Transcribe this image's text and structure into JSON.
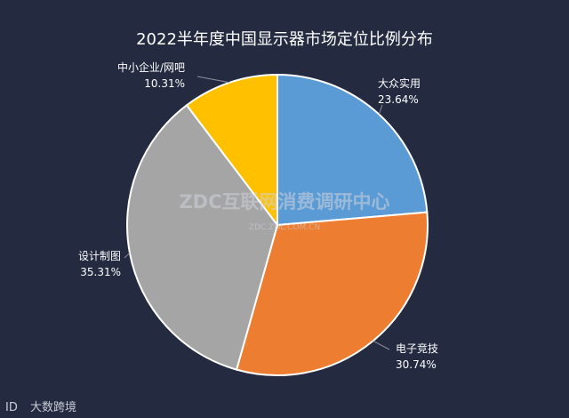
{
  "chart_data": {
    "type": "pie",
    "title": "2022半年度中国显示器市场定位比例分布",
    "slices": [
      {
        "label": "大众实用",
        "value": 23.64,
        "display": "23.64%",
        "color": "#5b9bd5"
      },
      {
        "label": "电子竞技",
        "value": 30.74,
        "display": "30.74%",
        "color": "#ed7d31"
      },
      {
        "label": "设计制图",
        "value": 35.31,
        "display": "35.31%",
        "color": "#a5a5a5"
      },
      {
        "label": "中小企业/网吧",
        "value": 10.31,
        "display": "10.31%",
        "color": "#ffc000"
      }
    ]
  },
  "watermark": {
    "main": "ZDC互联网消费调研中心",
    "sub": "ZDC.ZOL.COM.CN"
  },
  "brand": {
    "mark": "ID",
    "name": "大数跨境"
  }
}
